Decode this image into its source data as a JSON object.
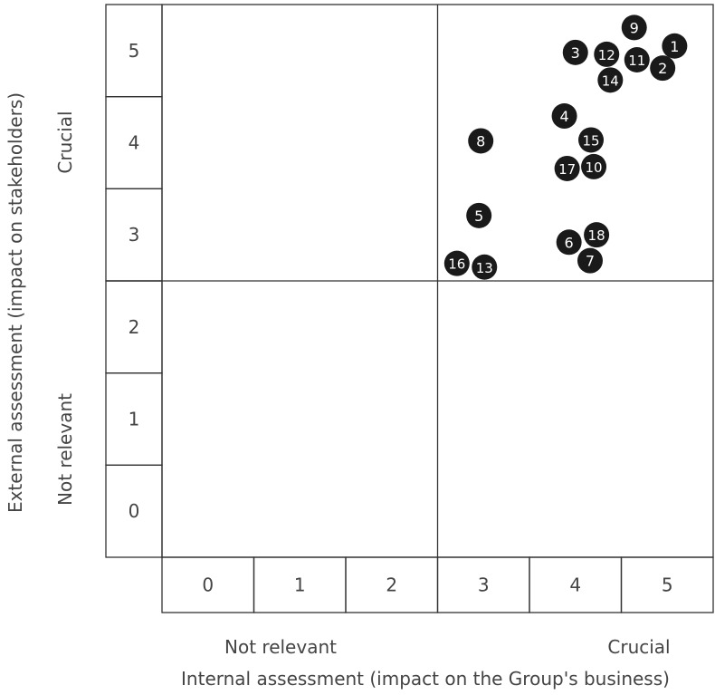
{
  "chart_data": {
    "type": "scatter",
    "title": "",
    "xlabel": "Internal assessment (impact on the Group's business)",
    "ylabel": "External assessment (impact on stakeholders)",
    "x_ticks": [
      "0",
      "1",
      "2",
      "3",
      "4",
      "5"
    ],
    "y_ticks": [
      "0",
      "1",
      "2",
      "3",
      "4",
      "5"
    ],
    "xlim": [
      0,
      6
    ],
    "ylim": [
      0,
      6
    ],
    "x_low_label": "Not relevant",
    "x_high_label": "Crucial",
    "y_low_label": "Not relevant",
    "y_high_label": "Crucial",
    "quadrant_split": {
      "x": 3,
      "y": 3
    },
    "marker_color": "#1a1a1a",
    "marker_text_color": "#ffffff",
    "points": [
      {
        "label": "1",
        "x": 5.58,
        "y": 5.55
      },
      {
        "label": "2",
        "x": 5.45,
        "y": 5.31
      },
      {
        "label": "3",
        "x": 4.5,
        "y": 5.48
      },
      {
        "label": "4",
        "x": 4.38,
        "y": 4.79
      },
      {
        "label": "5",
        "x": 3.45,
        "y": 3.71
      },
      {
        "label": "6",
        "x": 4.43,
        "y": 3.42
      },
      {
        "label": "7",
        "x": 4.66,
        "y": 3.22
      },
      {
        "label": "8",
        "x": 3.47,
        "y": 4.52
      },
      {
        "label": "9",
        "x": 5.14,
        "y": 5.75
      },
      {
        "label": "10",
        "x": 4.7,
        "y": 4.24
      },
      {
        "label": "11",
        "x": 5.17,
        "y": 5.4
      },
      {
        "label": "12",
        "x": 4.84,
        "y": 5.46
      },
      {
        "label": "13",
        "x": 3.51,
        "y": 3.15
      },
      {
        "label": "14",
        "x": 4.88,
        "y": 5.18
      },
      {
        "label": "15",
        "x": 4.67,
        "y": 4.53
      },
      {
        "label": "16",
        "x": 3.21,
        "y": 3.19
      },
      {
        "label": "17",
        "x": 4.41,
        "y": 4.22
      },
      {
        "label": "18",
        "x": 4.73,
        "y": 3.5
      }
    ]
  }
}
